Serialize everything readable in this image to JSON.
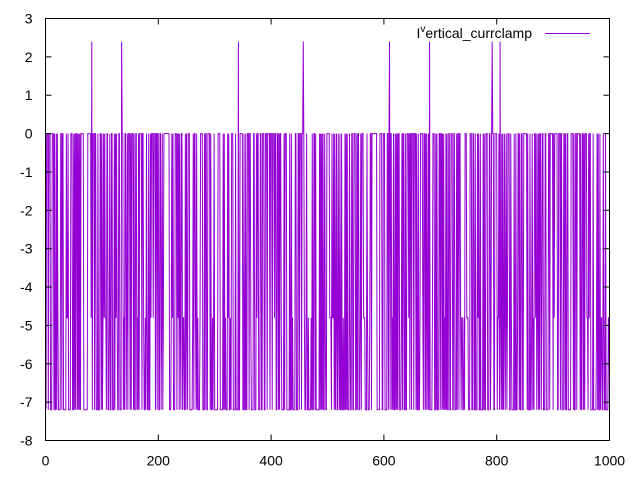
{
  "chart_data": {
    "type": "line",
    "xlim": [
      0,
      1000
    ],
    "ylim": [
      -8,
      3
    ],
    "x_ticks": [
      0,
      200,
      400,
      600,
      800,
      1000
    ],
    "y_ticks": [
      3,
      2,
      1,
      0,
      -1,
      -2,
      -3,
      -4,
      -5,
      -6,
      -7,
      -8
    ],
    "grid": false,
    "legend_position": "top-right",
    "series": [
      {
        "name": "I^vertical_currclamp",
        "name_parts": {
          "base": "I",
          "sup": "v",
          "rest": "ertical_currclamp"
        },
        "color": "#9400d3",
        "baseline": 0,
        "trough_low": -7.2,
        "trough_mid": -4.8,
        "spike_value": 2.4,
        "spike_x": [
          82,
          135,
          342,
          457,
          610,
          681,
          792,
          806
        ],
        "points_note_x_range": [
          0,
          1000
        ]
      }
    ]
  }
}
